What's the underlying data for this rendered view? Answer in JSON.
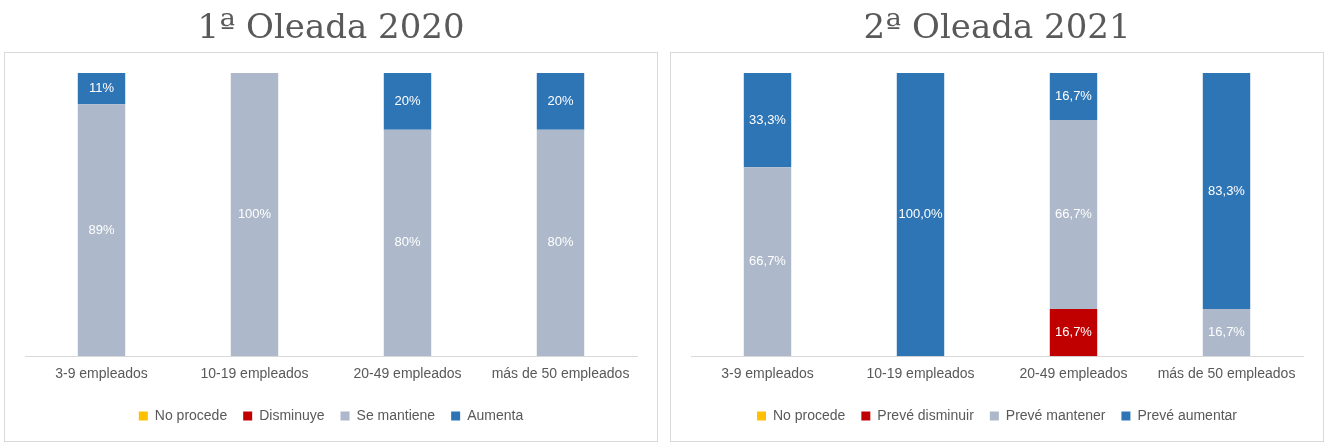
{
  "chart_data": [
    {
      "type": "bar",
      "title": "1ª Oleada 2020",
      "stacked": true,
      "categories": [
        "3-9 empleados",
        "10-19 empleados",
        "20-49 empleados",
        "más de 50 empleados"
      ],
      "ylim": [
        0,
        100
      ],
      "tick_labels": "x",
      "grid": false,
      "legend": "bottom",
      "series": [
        {
          "name": "No procede",
          "color": "#ffc000",
          "values": [
            null,
            null,
            null,
            null
          ]
        },
        {
          "name": "Disminuye",
          "color": "#c00000",
          "values": [
            null,
            null,
            null,
            null
          ]
        },
        {
          "name": "Se mantiene",
          "color": "#adb9ca",
          "values": [
            89,
            100,
            80,
            80
          ],
          "value_labels": [
            "89%",
            "100%",
            "80%",
            "80%"
          ]
        },
        {
          "name": "Aumenta",
          "color": "#2e75b6",
          "values": [
            11,
            null,
            20,
            20
          ],
          "value_labels": [
            "11%",
            null,
            "20%",
            "20%"
          ]
        }
      ]
    },
    {
      "type": "bar",
      "title": "2ª Oleada 2021",
      "stacked": true,
      "categories": [
        "3-9 empleados",
        "10-19 empleados",
        "20-49 empleados",
        "más de 50 empleados"
      ],
      "ylim": [
        0,
        100
      ],
      "tick_labels": "x",
      "grid": false,
      "legend": "bottom",
      "series": [
        {
          "name": "No procede",
          "color": "#ffc000",
          "values": [
            null,
            null,
            null,
            null
          ]
        },
        {
          "name": "Prevé disminuir",
          "color": "#c00000",
          "values": [
            null,
            null,
            16.7,
            null
          ],
          "value_labels": [
            null,
            null,
            "16,7%",
            null
          ]
        },
        {
          "name": "Prevé mantener",
          "color": "#adb9ca",
          "values": [
            66.7,
            null,
            66.7,
            16.7
          ],
          "value_labels": [
            "66,7%",
            null,
            "66,7%",
            "16,7%"
          ]
        },
        {
          "name": "Prevé aumentar",
          "color": "#2e75b6",
          "values": [
            33.3,
            100,
            16.7,
            83.3
          ],
          "value_labels": [
            "33,3%",
            "100,0%",
            "16,7%",
            "83,3%"
          ]
        }
      ]
    }
  ]
}
